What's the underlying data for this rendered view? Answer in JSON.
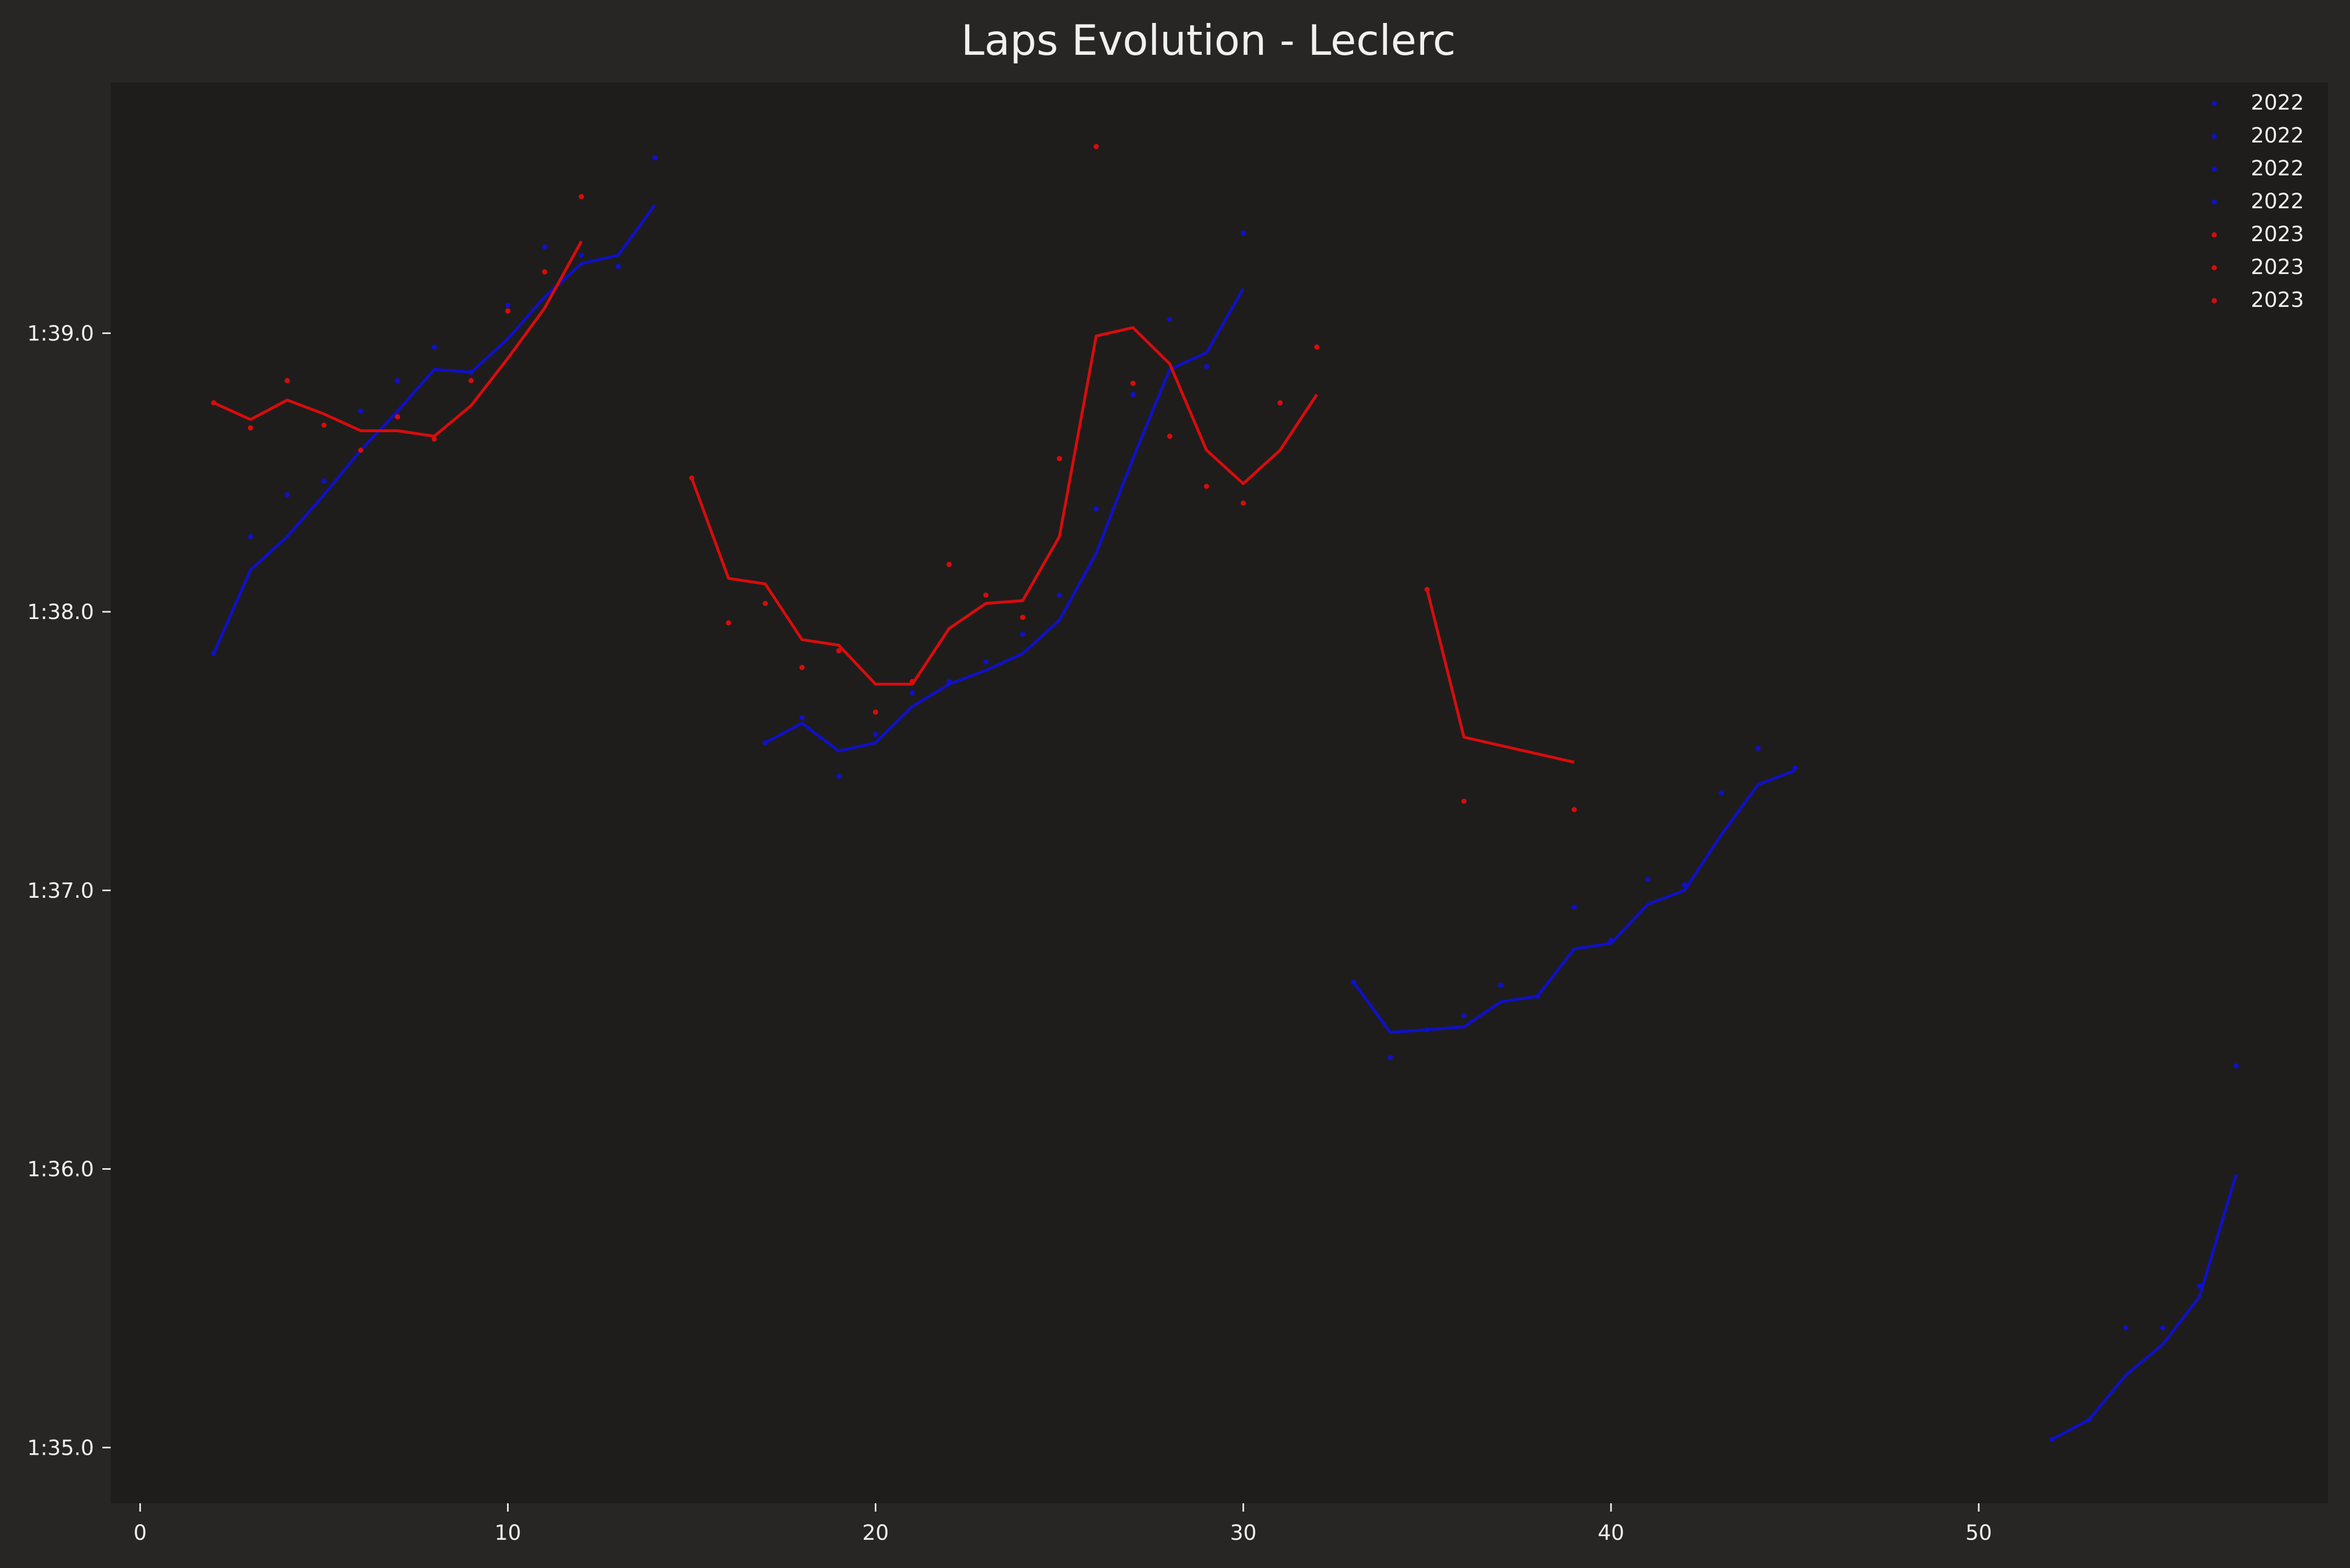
{
  "chart_data": {
    "type": "line",
    "title": "Laps Evolution - Leclerc",
    "xlabel": "",
    "ylabel": "",
    "xlim": [
      -0.8,
      59.5
    ],
    "ylim": [
      94.8,
      99.9
    ],
    "x_ticks": [
      0,
      10,
      20,
      30,
      40,
      50
    ],
    "y_ticks": [
      95,
      96,
      97,
      98,
      99
    ],
    "y_tick_labels": [
      "1:35.0",
      "1:36.0",
      "1:37.0",
      "1:38.0",
      "1:39.0"
    ],
    "grid": false,
    "legend_position": "top-right",
    "legend": [
      "2022",
      "2022",
      "2022",
      "2022",
      "2023",
      "2023",
      "2023"
    ],
    "colors": {
      "background": "#282625",
      "plot_background": "#1e1d1c",
      "text": "#f0f0f0",
      "series_2022": "#1010c8",
      "series_2023": "#d80c0c"
    },
    "series": [
      {
        "name": "2022",
        "color": "#1010c8",
        "points": [
          [
            2,
            97.85
          ],
          [
            3,
            98.27
          ],
          [
            4,
            98.42
          ],
          [
            5,
            98.47
          ],
          [
            6,
            98.72
          ],
          [
            7,
            98.83
          ],
          [
            8,
            98.95
          ],
          [
            9,
            98.86
          ],
          [
            10,
            99.1
          ],
          [
            11,
            99.31
          ],
          [
            12,
            99.28
          ],
          [
            13,
            99.24
          ],
          [
            14,
            99.63
          ]
        ],
        "smooth": [
          [
            2,
            97.85
          ],
          [
            3,
            98.15
          ],
          [
            4,
            98.27
          ],
          [
            5,
            98.42
          ],
          [
            6,
            98.58
          ],
          [
            7,
            98.72
          ],
          [
            8,
            98.87
          ],
          [
            9,
            98.86
          ],
          [
            10,
            98.98
          ],
          [
            11,
            99.13
          ],
          [
            12,
            99.25
          ],
          [
            13,
            99.28
          ],
          [
            14,
            99.46
          ]
        ]
      },
      {
        "name": "2022",
        "color": "#1010c8",
        "points": [
          [
            17,
            97.53
          ],
          [
            18,
            97.62
          ],
          [
            19,
            97.41
          ],
          [
            20,
            97.56
          ],
          [
            21,
            97.71
          ],
          [
            22,
            97.75
          ],
          [
            23,
            97.82
          ],
          [
            24,
            97.92
          ],
          [
            25,
            98.06
          ],
          [
            26,
            98.37
          ],
          [
            27,
            98.78
          ],
          [
            28,
            99.05
          ],
          [
            29,
            98.88
          ],
          [
            30,
            99.36
          ]
        ],
        "smooth": [
          [
            17,
            97.53
          ],
          [
            18,
            97.6
          ],
          [
            19,
            97.5
          ],
          [
            20,
            97.53
          ],
          [
            21,
            97.66
          ],
          [
            22,
            97.74
          ],
          [
            23,
            97.79
          ],
          [
            24,
            97.85
          ],
          [
            25,
            97.97
          ],
          [
            26,
            98.21
          ],
          [
            27,
            98.55
          ],
          [
            28,
            98.87
          ],
          [
            29,
            98.93
          ],
          [
            30,
            99.16
          ]
        ]
      },
      {
        "name": "2022",
        "color": "#1010c8",
        "points": [
          [
            33,
            96.67
          ],
          [
            34,
            96.4
          ],
          [
            35,
            96.5
          ],
          [
            36,
            96.55
          ],
          [
            37,
            96.66
          ],
          [
            38,
            96.62
          ],
          [
            39,
            96.94
          ],
          [
            40,
            96.82
          ],
          [
            41,
            97.04
          ],
          [
            42,
            97.02
          ],
          [
            43,
            97.35
          ],
          [
            44,
            97.51
          ],
          [
            45,
            97.44
          ]
        ],
        "smooth": [
          [
            33,
            96.67
          ],
          [
            34,
            96.49
          ],
          [
            35,
            96.5
          ],
          [
            36,
            96.51
          ],
          [
            37,
            96.6
          ],
          [
            38,
            96.62
          ],
          [
            39,
            96.79
          ],
          [
            40,
            96.81
          ],
          [
            41,
            96.95
          ],
          [
            42,
            97.0
          ],
          [
            43,
            97.2
          ],
          [
            44,
            97.38
          ],
          [
            45,
            97.43
          ]
        ]
      },
      {
        "name": "2022",
        "color": "#1010c8",
        "points": [
          [
            52,
            95.03
          ],
          [
            53,
            95.1
          ],
          [
            54,
            95.43
          ],
          [
            55,
            95.43
          ],
          [
            56,
            95.58
          ],
          [
            57,
            96.37
          ]
        ],
        "smooth": [
          [
            52,
            95.03
          ],
          [
            53,
            95.1
          ],
          [
            54,
            95.26
          ],
          [
            55,
            95.37
          ],
          [
            56,
            95.54
          ],
          [
            57,
            95.98
          ]
        ]
      },
      {
        "name": "2023",
        "color": "#d80c0c",
        "points": [
          [
            2,
            98.75
          ],
          [
            3,
            98.66
          ],
          [
            4,
            98.83
          ],
          [
            5,
            98.67
          ],
          [
            6,
            98.58
          ],
          [
            7,
            98.7
          ],
          [
            8,
            98.62
          ],
          [
            9,
            98.83
          ],
          [
            10,
            99.08
          ],
          [
            11,
            99.22
          ],
          [
            12,
            99.49
          ]
        ],
        "smooth": [
          [
            2,
            98.75
          ],
          [
            3,
            98.69
          ],
          [
            4,
            98.76
          ],
          [
            5,
            98.71
          ],
          [
            6,
            98.65
          ],
          [
            7,
            98.65
          ],
          [
            8,
            98.63
          ],
          [
            9,
            98.74
          ],
          [
            10,
            98.91
          ],
          [
            11,
            99.09
          ],
          [
            12,
            99.33
          ]
        ]
      },
      {
        "name": "2023",
        "color": "#d80c0c",
        "points": [
          [
            15,
            98.48
          ],
          [
            16,
            97.96
          ],
          [
            17,
            98.03
          ],
          [
            18,
            97.8
          ],
          [
            19,
            97.86
          ],
          [
            20,
            97.64
          ],
          [
            21,
            97.75
          ],
          [
            22,
            98.17
          ],
          [
            23,
            98.06
          ],
          [
            24,
            97.98
          ],
          [
            25,
            98.55
          ],
          [
            26,
            99.67
          ],
          [
            27,
            98.82
          ],
          [
            28,
            98.63
          ],
          [
            29,
            98.45
          ],
          [
            30,
            98.39
          ],
          [
            31,
            98.75
          ],
          [
            32,
            98.95
          ]
        ],
        "smooth": [
          [
            15,
            98.48
          ],
          [
            16,
            98.12
          ],
          [
            17,
            98.1
          ],
          [
            18,
            97.9
          ],
          [
            19,
            97.88
          ],
          [
            20,
            97.74
          ],
          [
            21,
            97.74
          ],
          [
            22,
            97.94
          ],
          [
            23,
            98.03
          ],
          [
            24,
            98.04
          ],
          [
            25,
            98.27
          ],
          [
            26,
            98.99
          ],
          [
            27,
            99.02
          ],
          [
            28,
            98.89
          ],
          [
            29,
            98.58
          ],
          [
            30,
            98.46
          ],
          [
            31,
            98.58
          ],
          [
            32,
            98.78
          ]
        ]
      },
      {
        "name": "2023",
        "color": "#d80c0c",
        "points": [
          [
            35,
            98.08
          ],
          [
            36,
            97.32
          ],
          [
            39,
            97.29
          ]
        ],
        "smooth": [
          [
            35,
            98.08
          ],
          [
            36,
            97.55
          ],
          [
            39,
            97.46
          ]
        ]
      }
    ]
  }
}
